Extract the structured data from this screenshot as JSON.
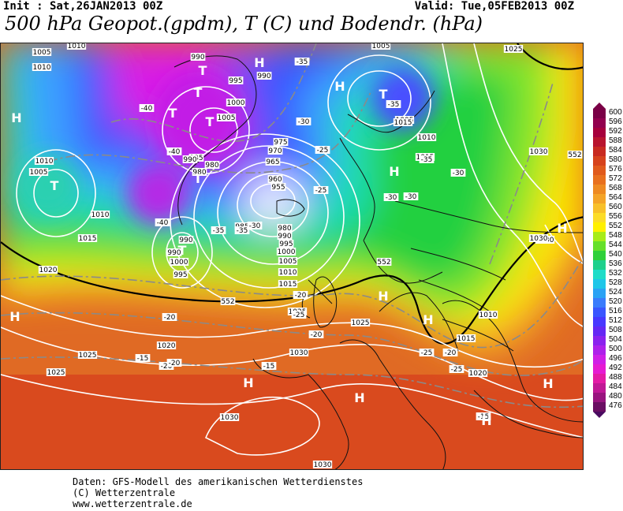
{
  "header": {
    "init": "Init : Sat,26JAN2013 00Z",
    "valid": "Valid: Tue,05FEB2013 00Z",
    "title": "500 hPa Geopot.(gpdm), T (C) und Bodendr. (hPa)"
  },
  "colors": {
    "deep_purple": "#7a0aa8",
    "magenta": "#d81ee6",
    "violet": "#9b3cf0",
    "blue": "#3a56ff",
    "light_blue": "#3aa0ff",
    "cyan": "#1edcb4",
    "green": "#22d040",
    "light_green": "#86e62a",
    "yellow": "#ffe600",
    "orange": "#f5a020",
    "dark_orange": "#e86a20",
    "red_orange": "#d94a1e"
  },
  "scale": {
    "top_color": "#7a0046",
    "bottom_color": "#4a0a60",
    "levels": [
      {
        "label": "600",
        "color": "#7a0046"
      },
      {
        "label": "596",
        "color": "#92004e"
      },
      {
        "label": "592",
        "color": "#a6003c"
      },
      {
        "label": "588",
        "color": "#b8142e"
      },
      {
        "label": "584",
        "color": "#c82a20"
      },
      {
        "label": "580",
        "color": "#d6421c"
      },
      {
        "label": "576",
        "color": "#e05a1c"
      },
      {
        "label": "572",
        "color": "#e8701e"
      },
      {
        "label": "568",
        "color": "#ee8a22"
      },
      {
        "label": "564",
        "color": "#f4a428"
      },
      {
        "label": "560",
        "color": "#f8c02a"
      },
      {
        "label": "556",
        "color": "#fcdc28"
      },
      {
        "label": "552",
        "color": "#fff000"
      },
      {
        "label": "548",
        "color": "#a8ec18"
      },
      {
        "label": "544",
        "color": "#66e02a"
      },
      {
        "label": "540",
        "color": "#2ed03a"
      },
      {
        "label": "536",
        "color": "#1ed08c"
      },
      {
        "label": "532",
        "color": "#1edcc8"
      },
      {
        "label": "528",
        "color": "#1ec6e8"
      },
      {
        "label": "524",
        "color": "#2aa2f4"
      },
      {
        "label": "520",
        "color": "#3a7cfc"
      },
      {
        "label": "516",
        "color": "#3a56ff"
      },
      {
        "label": "512",
        "color": "#4838ff"
      },
      {
        "label": "508",
        "color": "#6428f4"
      },
      {
        "label": "504",
        "color": "#8a22ee"
      },
      {
        "label": "500",
        "color": "#ae20ea"
      },
      {
        "label": "496",
        "color": "#d01ee6"
      },
      {
        "label": "492",
        "color": "#e61ad2"
      },
      {
        "label": "488",
        "color": "#e41aa6"
      },
      {
        "label": "484",
        "color": "#c01896"
      },
      {
        "label": "480",
        "color": "#98147e"
      },
      {
        "label": "476",
        "color": "#6a0e62"
      }
    ]
  },
  "pressure_labels": [
    "1005",
    "1010",
    "1010",
    "1005",
    "990",
    "995",
    "990",
    "985",
    "1000",
    "1005",
    "975",
    "970",
    "965",
    "960",
    "955",
    "980",
    "990",
    "980",
    "1010",
    "1005",
    "1010",
    "1015",
    "990",
    "990",
    "1000",
    "995",
    "985",
    "980",
    "990",
    "995",
    "1000",
    "1005",
    "1010",
    "1015",
    "1020",
    "1025",
    "1030",
    "1030",
    "1025",
    "1020",
    "1025",
    "1030",
    "1015",
    "1010",
    "1005",
    "1015",
    "1025",
    "1030",
    "1030",
    "1015",
    "1010",
    "1020",
    "1030",
    "1025"
  ],
  "temp_labels": [
    "-35",
    "-35",
    "-40",
    "-40",
    "-35",
    "-30",
    "-25",
    "-20",
    "-40",
    "-35",
    "-30",
    "-25",
    "-30",
    "-35",
    "-30",
    "-20",
    "-25",
    "-20",
    "-25",
    "-15",
    "-15",
    "-20",
    "-30",
    "-25",
    "-20",
    "-15",
    "-20"
  ],
  "contour_labels": [
    "552",
    "552",
    "552"
  ],
  "system_labels": [
    "H",
    "H",
    "H",
    "H",
    "H",
    "H",
    "H",
    "H",
    "H",
    "H",
    "H",
    "H",
    "T",
    "T",
    "T",
    "T",
    "T",
    "T",
    "T",
    "T"
  ],
  "footer": {
    "line1": "Daten: GFS-Modell des amerikanischen Wetterdienstes",
    "line2": "(C) Wetterzentrale",
    "line3": "www.wetterzentrale.de"
  }
}
